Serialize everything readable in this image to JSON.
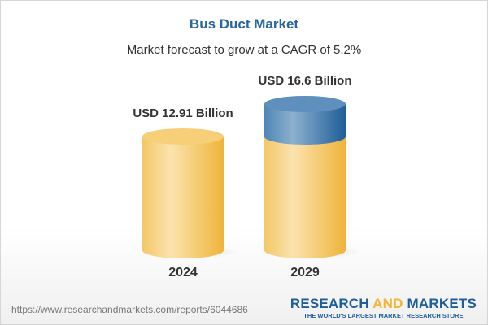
{
  "title": "Bus Duct Market",
  "subtitle": "Market forecast to grow at a CAGR of 5.2%",
  "url": "https://www.researchandmarkets.com/reports/6044686",
  "logo": {
    "word1": "RESEARCH",
    "word2": "AND",
    "word3": "MARKETS",
    "tagline": "THE WORLD'S LARGEST MARKET RESEARCH STORE"
  },
  "colors": {
    "base": "#f2c15a",
    "growth": "#2e6aa0",
    "title": "#2a66a0"
  },
  "chart_data": {
    "type": "bar",
    "style": "3d-cylinder",
    "categories": [
      "2024",
      "2029"
    ],
    "values": [
      12.91,
      16.6
    ],
    "data_labels": [
      "USD 12.91 Billion",
      "USD 16.6 Billion"
    ],
    "title": "Bus Duct Market",
    "subtitle": "Market forecast to grow at a CAGR of 5.2%",
    "xlabel": "",
    "ylabel": "",
    "unit": "USD Billion",
    "grid": false
  }
}
